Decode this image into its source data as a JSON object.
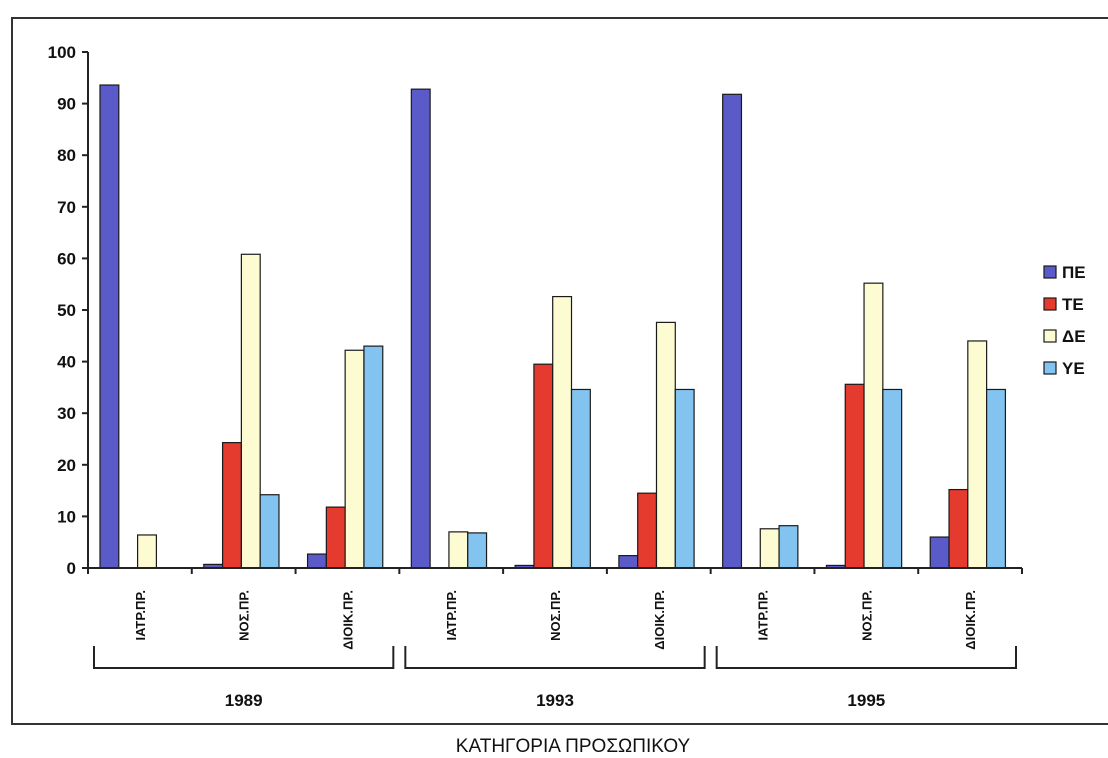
{
  "chart_data": {
    "type": "bar",
    "ylim": [
      0,
      100
    ],
    "yticks": [
      0,
      10,
      20,
      30,
      40,
      50,
      60,
      70,
      80,
      90,
      100
    ],
    "categories": [
      "ΙΑΤΡ.ΠΡ.",
      "ΝΟΣ.ΠΡ.",
      "ΔΙΟΙΚ.ΠΡ.",
      "ΙΑΤΡ.ΠΡ.",
      "ΝΟΣ.ΠΡ.",
      "ΔΙΟΙΚ.ΠΡ.",
      "ΙΑΤΡ.ΠΡ.",
      "ΝΟΣ.ΠΡ.",
      "ΔΙΟΙΚ.ΠΡ."
    ],
    "groups": [
      {
        "label": "1989",
        "categories": [
          0,
          1,
          2
        ]
      },
      {
        "label": "1993",
        "categories": [
          3,
          4,
          5
        ]
      },
      {
        "label": "1995",
        "categories": [
          6,
          7,
          8
        ]
      }
    ],
    "xlabel": "ΚΑΤΗΓΟΡΙΑ ΠΡΟΣΩΠΙΚΟΥ",
    "legend_position": "right",
    "grid": false,
    "series": [
      {
        "name": "ΠΕ",
        "color": "#5a5ac8",
        "values": [
          93.6,
          0.7,
          2.7,
          92.8,
          0.5,
          2.4,
          91.8,
          0.5,
          6.0
        ]
      },
      {
        "name": "ΤΕ",
        "color": "#e53a2e",
        "values": [
          0,
          24.3,
          11.8,
          0,
          39.5,
          14.5,
          0,
          35.6,
          15.2
        ]
      },
      {
        "name": "ΔΕ",
        "color": "#fdfbd2",
        "values": [
          6.4,
          60.8,
          42.2,
          7.0,
          52.6,
          47.6,
          7.6,
          55.2,
          44.0
        ]
      },
      {
        "name": "ΥΕ",
        "color": "#83c3ef",
        "values": [
          0,
          14.2,
          43.0,
          6.8,
          34.6,
          34.6,
          8.2,
          34.6,
          34.6
        ]
      }
    ]
  }
}
